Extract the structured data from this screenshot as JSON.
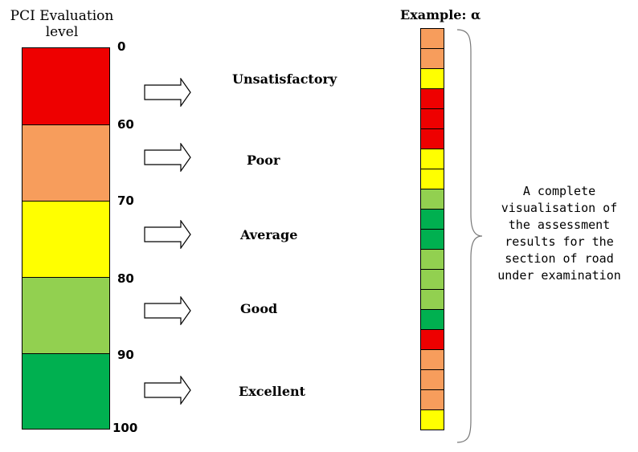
{
  "legend": {
    "title_line1": "PCI Evaluation",
    "title_line2": "level",
    "ticks": [
      "0",
      "60",
      "70",
      "80",
      "90",
      "100"
    ],
    "bands": [
      {
        "label": "Unsatisfactory",
        "from": 0,
        "to": 60,
        "color": "#ee0000"
      },
      {
        "label": "Poor",
        "from": 60,
        "to": 70,
        "color": "#f79d5c"
      },
      {
        "label": "Average",
        "from": 70,
        "to": 80,
        "color": "#ffff00"
      },
      {
        "label": "Good",
        "from": 80,
        "to": 90,
        "color": "#92d050"
      },
      {
        "label": "Excellent",
        "from": 90,
        "to": 100,
        "color": "#00b050"
      }
    ],
    "arrow_icon": "outline-right-arrow-icon"
  },
  "example": {
    "title": "Example: α",
    "segments": [
      "Poor",
      "Poor",
      "Average",
      "Unsatisfactory",
      "Unsatisfactory",
      "Unsatisfactory",
      "Average",
      "Average",
      "Good",
      "Excellent",
      "Excellent",
      "Good",
      "Good",
      "Good",
      "Excellent",
      "Unsatisfactory",
      "Poor",
      "Poor",
      "Poor",
      "Average"
    ],
    "brace_icon": "right-curly-brace-icon",
    "description_lines": [
      "A complete",
      "visualisation of",
      "the assessment",
      "results for the",
      "section of road",
      "under examination"
    ]
  }
}
